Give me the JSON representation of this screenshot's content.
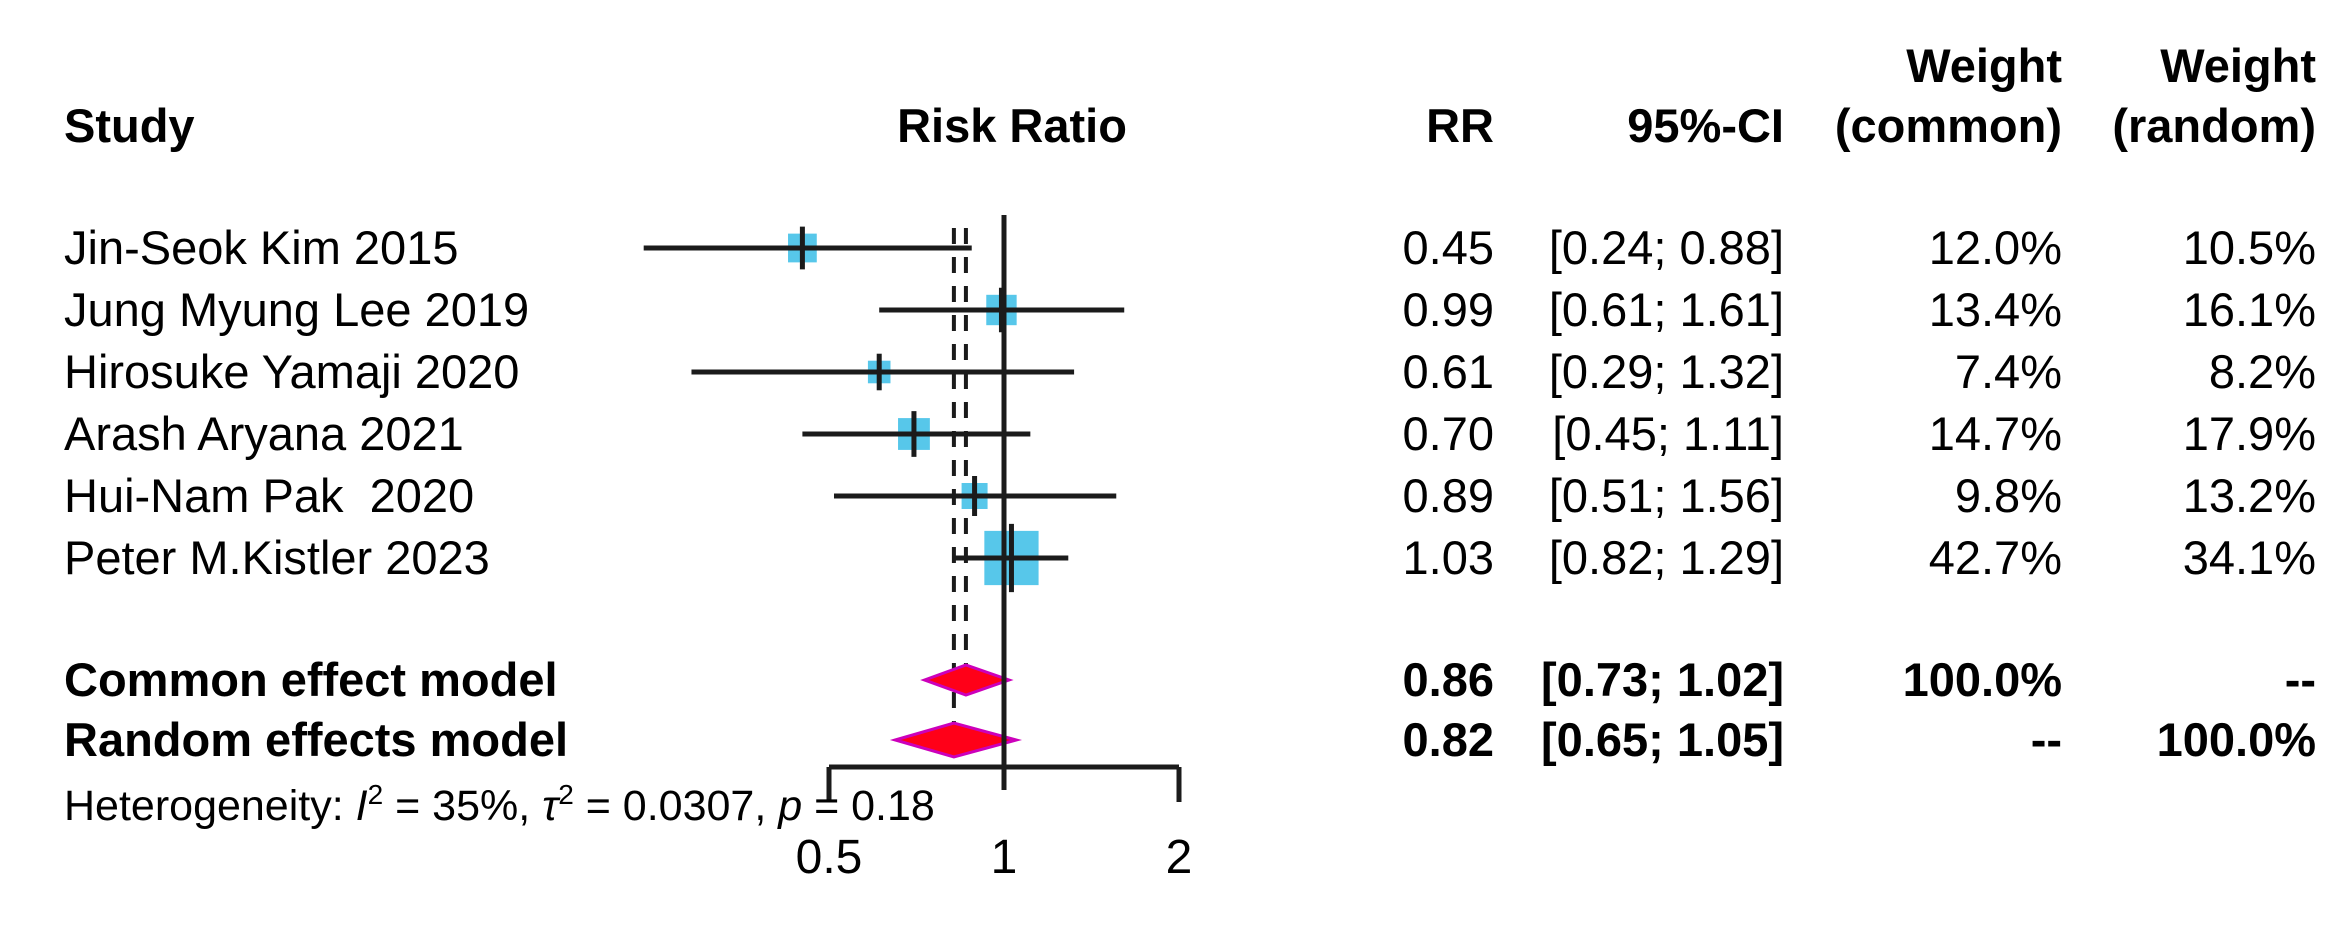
{
  "table": {
    "header": {
      "study": "Study",
      "risk_ratio": "Risk Ratio",
      "rr": "RR",
      "ci": "95%-CI",
      "weight_top_common": "Weight",
      "weight_top_random": "Weight",
      "common": "(common)",
      "random": "(random)"
    },
    "rows": [
      {
        "study": "Jin-Seok Kim 2015",
        "rr": "0.45",
        "ci": "[0.24; 0.88]",
        "w_common": "12.0%",
        "w_random": "10.5%"
      },
      {
        "study": "Jung Myung Lee 2019",
        "rr": "0.99",
        "ci": "[0.61; 1.61]",
        "w_common": "13.4%",
        "w_random": "16.1%"
      },
      {
        "study": "Hirosuke Yamaji 2020",
        "rr": "0.61",
        "ci": "[0.29; 1.32]",
        "w_common": "7.4%",
        "w_random": "8.2%"
      },
      {
        "study": "Arash Aryana 2021",
        "rr": "0.70",
        "ci": "[0.45; 1.11]",
        "w_common": "14.7%",
        "w_random": "17.9%"
      },
      {
        "study": "Hui-Nam Pak  2020",
        "rr": "0.89",
        "ci": "[0.51; 1.56]",
        "w_common": "9.8%",
        "w_random": "13.2%"
      },
      {
        "study": "Peter M.Kistler 2023",
        "rr": "1.03",
        "ci": "[0.82; 1.29]",
        "w_common": "42.7%",
        "w_random": "34.1%"
      }
    ],
    "pooled": [
      {
        "label": "Common effect model",
        "rr": "0.86",
        "ci": "[0.73; 1.02]",
        "w_common": "100.0%",
        "w_random": "--"
      },
      {
        "label": "Random effects model",
        "rr": "0.82",
        "ci": "[0.65; 1.05]",
        "w_common": "--",
        "w_random": "100.0%"
      }
    ]
  },
  "heterogeneity_parts": {
    "prefix": "Heterogeneity: ",
    "i": "I",
    "i_sup": "2",
    "mid1": " = 35%, ",
    "tau": "τ",
    "tau_sup": "2",
    "mid2": " = 0.0307, ",
    "p": "p",
    "suffix": " = 0.18"
  },
  "chart_data": {
    "type": "scatter",
    "variant": "forest-plot",
    "title": "Risk Ratio",
    "x_scale": "log2",
    "x_range": [
      0.5,
      2
    ],
    "axis_ticks": [
      {
        "value": 0.5,
        "label": "0.5"
      },
      {
        "value": 1,
        "label": "1"
      },
      {
        "value": 2,
        "label": "2"
      }
    ],
    "reference_line": 1,
    "grid": false,
    "studies": [
      {
        "name": "Jin-Seok Kim 2015",
        "rr": 0.45,
        "ci_low": 0.24,
        "ci_high": 0.88,
        "weight_common_pct": 12.0,
        "weight_random_pct": 10.5
      },
      {
        "name": "Jung Myung Lee 2019",
        "rr": 0.99,
        "ci_low": 0.61,
        "ci_high": 1.61,
        "weight_common_pct": 13.4,
        "weight_random_pct": 16.1
      },
      {
        "name": "Hirosuke Yamaji 2020",
        "rr": 0.61,
        "ci_low": 0.29,
        "ci_high": 1.32,
        "weight_common_pct": 7.4,
        "weight_random_pct": 8.2
      },
      {
        "name": "Arash Aryana 2021",
        "rr": 0.7,
        "ci_low": 0.45,
        "ci_high": 1.11,
        "weight_common_pct": 14.7,
        "weight_random_pct": 17.9
      },
      {
        "name": "Hui-Nam Pak  2020",
        "rr": 0.89,
        "ci_low": 0.51,
        "ci_high": 1.56,
        "weight_common_pct": 9.8,
        "weight_random_pct": 13.2
      },
      {
        "name": "Peter M.Kistler 2023",
        "rr": 1.03,
        "ci_low": 0.82,
        "ci_high": 1.29,
        "weight_common_pct": 42.7,
        "weight_random_pct": 34.1
      }
    ],
    "pooled": [
      {
        "name": "Common effect model",
        "rr": 0.86,
        "ci_low": 0.73,
        "ci_high": 1.02,
        "dashed_line": true
      },
      {
        "name": "Random effects model",
        "rr": 0.82,
        "ci_low": 0.65,
        "ci_high": 1.05,
        "dashed_line": true
      }
    ],
    "heterogeneity": {
      "I2_pct": 35,
      "tau2": 0.0307,
      "p": 0.18
    },
    "colors": {
      "square_fill": "#57c7ea",
      "diamond_fill": "#ff0018",
      "diamond_stroke": "#cc00bb",
      "line": "#1b1b1b",
      "text": "#000000"
    }
  }
}
